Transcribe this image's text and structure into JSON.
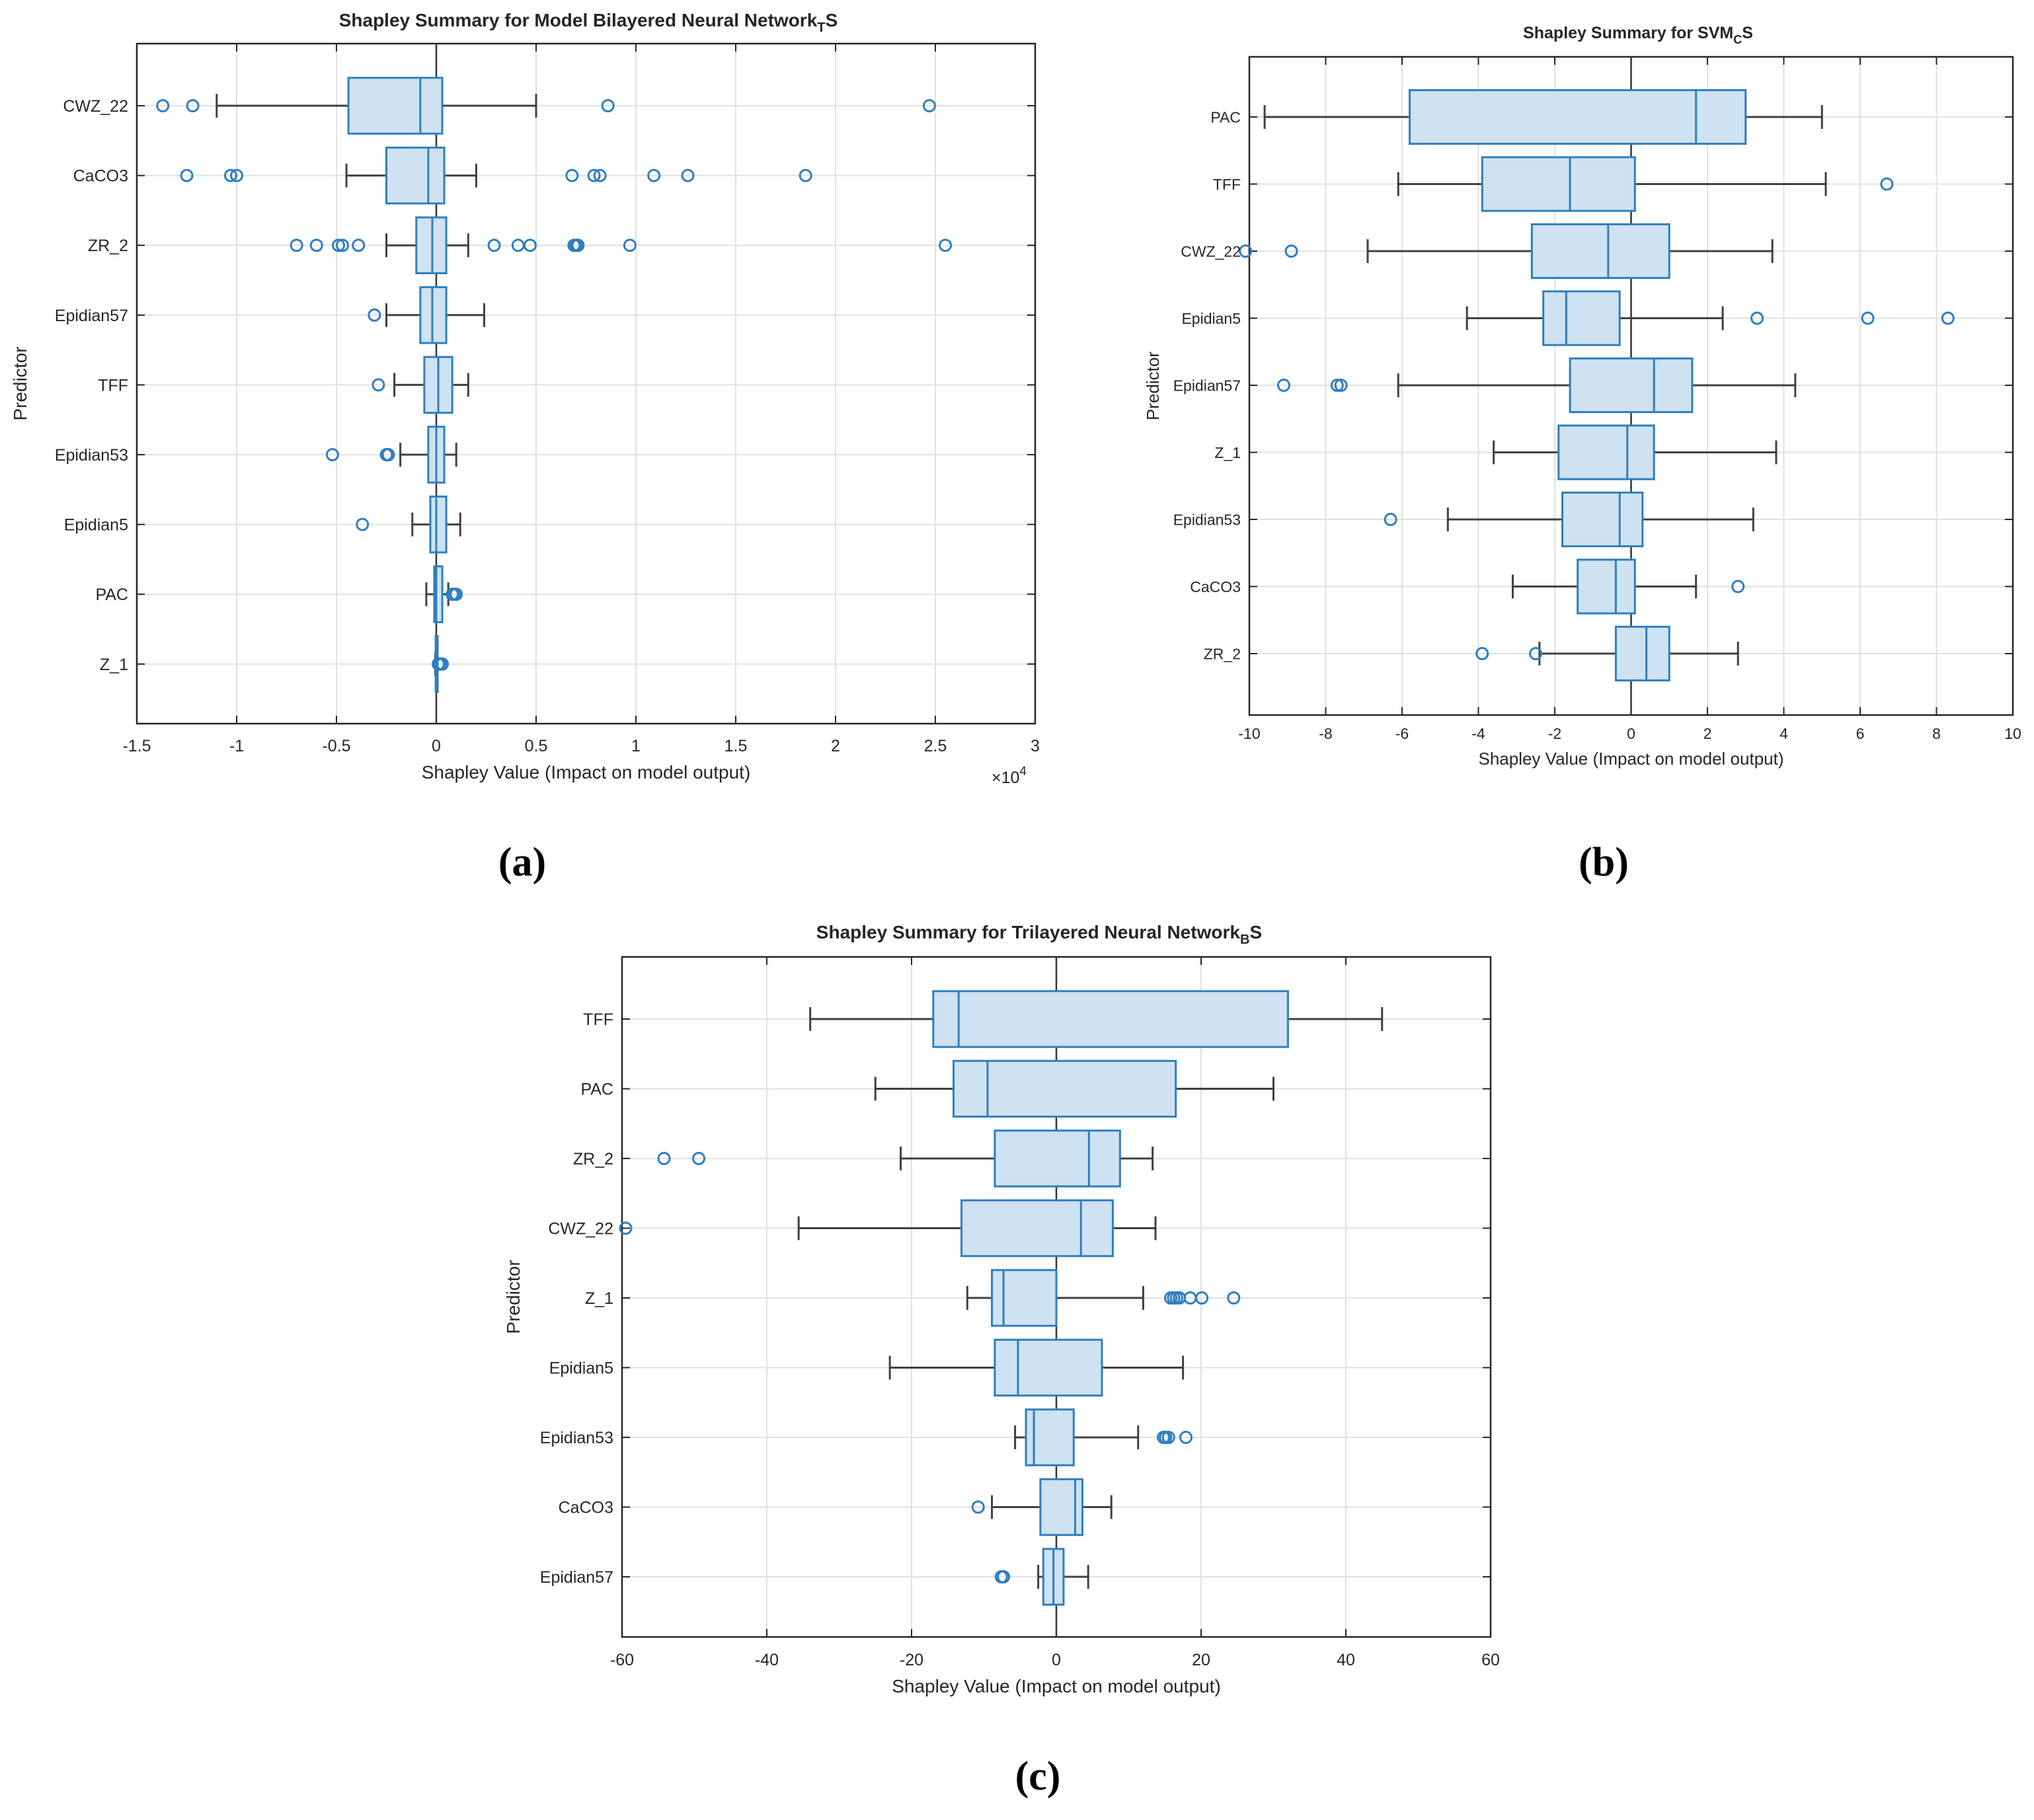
{
  "chart_data": [
    {
      "type": "box",
      "panel_label": "(a)",
      "title": "Shapley Summary for Model Bilayered Neural Network",
      "title_sub": "T",
      "title_suffix": "S",
      "xlabel": "Shapley Value (Impact on model output)",
      "ylabel": "Predictor",
      "exponent": "×10",
      "exponent_power": "4",
      "xlim": [
        -1.5,
        3
      ],
      "xticks": [
        -1.5,
        -1,
        -0.5,
        0,
        0.5,
        1,
        1.5,
        2,
        2.5,
        3
      ],
      "xtick_labels": [
        "-1.5",
        "-1",
        "-0.5",
        "0",
        "0.5",
        "1",
        "1.5",
        "2",
        "2.5",
        "3"
      ],
      "categories": [
        "CWZ_22",
        "CaCO3",
        "ZR_2",
        "Epidian57",
        "TFF",
        "Epidian53",
        "Epidian5",
        "PAC",
        "Z_1"
      ],
      "boxes": [
        {
          "whisker_low": -1.1,
          "q1": -0.44,
          "median": -0.08,
          "q3": 0.03,
          "whisker_high": 0.5,
          "outliers": [
            -1.37,
            -1.22,
            0.86,
            2.47
          ]
        },
        {
          "whisker_low": -0.45,
          "q1": -0.25,
          "median": -0.04,
          "q3": 0.04,
          "whisker_high": 0.2,
          "outliers": [
            -1.25,
            -1.03,
            -1.0,
            0.68,
            0.79,
            0.82,
            1.09,
            1.26,
            1.85
          ]
        },
        {
          "whisker_low": -0.25,
          "q1": -0.1,
          "median": -0.02,
          "q3": 0.05,
          "whisker_high": 0.16,
          "outliers": [
            -0.7,
            -0.6,
            -0.49,
            -0.47,
            -0.39,
            0.29,
            0.41,
            0.47,
            0.69,
            0.7,
            0.71,
            0.97,
            2.55
          ]
        },
        {
          "whisker_low": -0.25,
          "q1": -0.08,
          "median": -0.02,
          "q3": 0.05,
          "whisker_high": 0.24,
          "outliers": [
            -0.31
          ]
        },
        {
          "whisker_low": -0.21,
          "q1": -0.06,
          "median": 0.01,
          "q3": 0.08,
          "whisker_high": 0.16,
          "outliers": [
            -0.29
          ]
        },
        {
          "whisker_low": -0.18,
          "q1": -0.04,
          "median": 0.0,
          "q3": 0.04,
          "whisker_high": 0.1,
          "outliers": [
            -0.52,
            -0.25,
            -0.24
          ]
        },
        {
          "whisker_low": -0.12,
          "q1": -0.03,
          "median": 0.0,
          "q3": 0.05,
          "whisker_high": 0.12,
          "outliers": [
            -0.37
          ]
        },
        {
          "whisker_low": -0.05,
          "q1": -0.01,
          "median": 0.0,
          "q3": 0.03,
          "whisker_high": 0.06,
          "outliers": [
            0.08,
            0.09,
            0.1
          ]
        },
        {
          "whisker_low": -0.005,
          "q1": -0.003,
          "median": 0.0,
          "q3": 0.003,
          "whisker_high": 0.005,
          "outliers": [
            0.01,
            0.02,
            0.03
          ]
        }
      ]
    },
    {
      "type": "box",
      "panel_label": "(b)",
      "title": "Shapley Summary for  SVM",
      "title_sub": "C",
      "title_suffix": "S",
      "xlabel": "Shapley Value (Impact on model output)",
      "ylabel": "Predictor",
      "xlim": [
        -10,
        10
      ],
      "xticks": [
        -10,
        -8,
        -6,
        -4,
        -2,
        0,
        2,
        4,
        6,
        8,
        10
      ],
      "xtick_labels": [
        "-10",
        "-8",
        "-6",
        "-4",
        "-2",
        "0",
        "2",
        "4",
        "6",
        "8",
        "10"
      ],
      "categories": [
        "PAC",
        "TFF",
        "CWZ_22",
        "Epidian5",
        "Epidian57",
        "Z_1",
        "Epidian53",
        "CaCO3",
        "ZR_2"
      ],
      "boxes": [
        {
          "whisker_low": -9.6,
          "q1": -5.8,
          "median": 1.7,
          "q3": 3.0,
          "whisker_high": 5.0,
          "outliers": []
        },
        {
          "whisker_low": -6.1,
          "q1": -3.9,
          "median": -1.6,
          "q3": 0.1,
          "whisker_high": 5.1,
          "outliers": [
            6.7
          ]
        },
        {
          "whisker_low": -6.9,
          "q1": -2.6,
          "median": -0.6,
          "q3": 1.0,
          "whisker_high": 3.7,
          "outliers": [
            -10.1,
            -8.9
          ]
        },
        {
          "whisker_low": -4.3,
          "q1": -2.3,
          "median": -1.7,
          "q3": -0.3,
          "whisker_high": 2.4,
          "outliers": [
            3.3,
            6.2,
            8.3
          ]
        },
        {
          "whisker_low": -6.1,
          "q1": -1.6,
          "median": 0.6,
          "q3": 1.6,
          "whisker_high": 4.3,
          "outliers": [
            -9.1,
            -7.7,
            -7.6
          ]
        },
        {
          "whisker_low": -3.6,
          "q1": -1.9,
          "median": -0.1,
          "q3": 0.6,
          "whisker_high": 3.8,
          "outliers": []
        },
        {
          "whisker_low": -4.8,
          "q1": -1.8,
          "median": -0.3,
          "q3": 0.3,
          "whisker_high": 3.2,
          "outliers": [
            -6.3
          ]
        },
        {
          "whisker_low": -3.1,
          "q1": -1.4,
          "median": -0.4,
          "q3": 0.1,
          "whisker_high": 1.7,
          "outliers": [
            2.8
          ]
        },
        {
          "whisker_low": -2.4,
          "q1": -0.4,
          "median": 0.4,
          "q3": 1.0,
          "whisker_high": 2.8,
          "outliers": [
            -3.9,
            -2.5
          ]
        }
      ]
    },
    {
      "type": "box",
      "panel_label": "(c)",
      "title": "Shapley Summary for Trilayered Neural Network",
      "title_sub": "B",
      "title_suffix": "S",
      "xlabel": "Shapley Value (Impact on model output)",
      "ylabel": "Predictor",
      "xlim": [
        -60,
        60
      ],
      "xticks": [
        -60,
        -40,
        -20,
        0,
        20,
        40,
        60
      ],
      "xtick_labels": [
        "-60",
        "-40",
        "-20",
        "0",
        "20",
        "40",
        "60"
      ],
      "categories": [
        "TFF",
        "PAC",
        "ZR_2",
        "CWZ_22",
        "Z_1",
        "Epidian5",
        "Epidian53",
        "CaCO3",
        "Epidian57"
      ],
      "boxes": [
        {
          "whisker_low": -34,
          "q1": -17,
          "median": -13.5,
          "q3": 32,
          "whisker_high": 45,
          "outliers": []
        },
        {
          "whisker_low": -25,
          "q1": -14.2,
          "median": -9.5,
          "q3": 16.5,
          "whisker_high": 30,
          "outliers": []
        },
        {
          "whisker_low": -21.5,
          "q1": -8.5,
          "median": 4.5,
          "q3": 8.8,
          "whisker_high": 13.3,
          "outliers": [
            -54.2,
            -49.4
          ]
        },
        {
          "whisker_low": -35.6,
          "q1": -13.1,
          "median": 3.4,
          "q3": 7.8,
          "whisker_high": 13.7,
          "outliers": [
            -59.5
          ]
        },
        {
          "whisker_low": -12.3,
          "q1": -8.9,
          "median": -7.3,
          "q3": 0.0,
          "whisker_high": 12.0,
          "outliers": [
            15.8,
            16.2,
            16.6,
            17.0,
            18.5,
            20.1,
            24.5
          ]
        },
        {
          "whisker_low": -23.0,
          "q1": -8.5,
          "median": -5.3,
          "q3": 6.3,
          "whisker_high": 17.5,
          "outliers": []
        },
        {
          "whisker_low": -5.7,
          "q1": -4.2,
          "median": -3.1,
          "q3": 2.4,
          "whisker_high": 11.3,
          "outliers": [
            14.8,
            15.1,
            15.5,
            17.9
          ]
        },
        {
          "whisker_low": -8.9,
          "q1": -2.2,
          "median": 2.6,
          "q3": 3.6,
          "whisker_high": 7.6,
          "outliers": [
            -10.8
          ]
        },
        {
          "whisker_low": -2.5,
          "q1": -1.8,
          "median": -0.4,
          "q3": 1.0,
          "whisker_high": 4.4,
          "outliers": [
            -7.6,
            -7.3
          ]
        }
      ]
    }
  ],
  "colors": {
    "box_fill": "#cfe2f1",
    "box_edge": "#2f7ec0",
    "whisker": "#404040",
    "outlier": "#2f7ec0",
    "grid": "#e1e1e1",
    "axis": "#262626"
  }
}
